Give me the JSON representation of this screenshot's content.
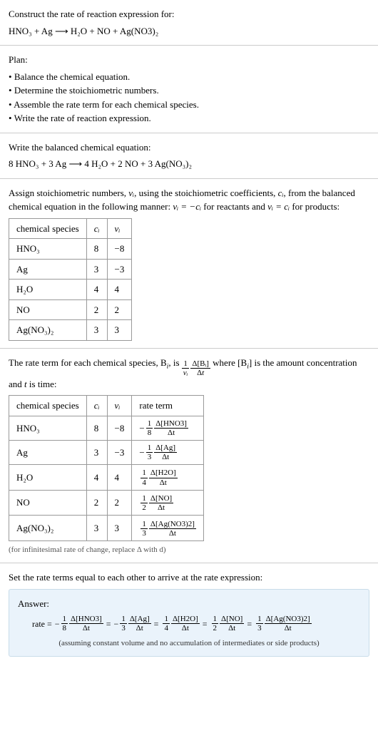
{
  "prompt": {
    "heading": "Construct the rate of reaction expression for:",
    "equation_lhs": "HNO",
    "equation": "HNO₃ + Ag ⟶ H₂O + NO + Ag(NO3)₂"
  },
  "plan": {
    "heading": "Plan:",
    "items": [
      "Balance the chemical equation.",
      "Determine the stoichiometric numbers.",
      "Assemble the rate term for each chemical species.",
      "Write the rate of reaction expression."
    ]
  },
  "balanced": {
    "heading": "Write the balanced chemical equation:",
    "equation": "8 HNO₃ + 3 Ag ⟶ 4 H₂O + 2 NO + 3 Ag(NO₃)₂"
  },
  "stoich": {
    "intro_a": "Assign stoichiometric numbers, ",
    "intro_b": ", using the stoichiometric coefficients, ",
    "intro_c": ", from the balanced chemical equation in the following manner: ",
    "intro_d": " for reactants and ",
    "intro_e": " for products:",
    "nu": "ν",
    "nu_i": "νᵢ",
    "c_i": "cᵢ",
    "eq1": "νᵢ = −cᵢ",
    "eq2": "νᵢ = cᵢ",
    "columns": [
      "chemical species",
      "cᵢ",
      "νᵢ"
    ],
    "rows": [
      {
        "species": "HNO₃",
        "c": "8",
        "nu": "−8"
      },
      {
        "species": "Ag",
        "c": "3",
        "nu": "−3"
      },
      {
        "species": "H₂O",
        "c": "4",
        "nu": "4"
      },
      {
        "species": "NO",
        "c": "2",
        "nu": "2"
      },
      {
        "species": "Ag(NO₃)₂",
        "c": "3",
        "nu": "3"
      }
    ]
  },
  "rateterm": {
    "intro_a": "The rate term for each chemical species, B",
    "intro_b": ", is ",
    "intro_c": " where [B",
    "intro_d": "] is the amount concentration and ",
    "intro_e": " is time:",
    "i_sub": "i",
    "t_var": "t",
    "columns": [
      "chemical species",
      "cᵢ",
      "νᵢ",
      "rate term"
    ],
    "rows": [
      {
        "species": "HNO₃",
        "c": "8",
        "nu": "−8",
        "sign": "−",
        "coef_num": "1",
        "coef_den": "8",
        "d_num": "Δ[HNO3]",
        "d_den": "Δt"
      },
      {
        "species": "Ag",
        "c": "3",
        "nu": "−3",
        "sign": "−",
        "coef_num": "1",
        "coef_den": "3",
        "d_num": "Δ[Ag]",
        "d_den": "Δt"
      },
      {
        "species": "H₂O",
        "c": "4",
        "nu": "4",
        "sign": "",
        "coef_num": "1",
        "coef_den": "4",
        "d_num": "Δ[H2O]",
        "d_den": "Δt"
      },
      {
        "species": "NO",
        "c": "2",
        "nu": "2",
        "sign": "",
        "coef_num": "1",
        "coef_den": "2",
        "d_num": "Δ[NO]",
        "d_den": "Δt"
      },
      {
        "species": "Ag(NO₃)₂",
        "c": "3",
        "nu": "3",
        "sign": "",
        "coef_num": "1",
        "coef_den": "3",
        "d_num": "Δ[Ag(NO3)2]",
        "d_den": "Δt"
      }
    ],
    "note": "(for infinitesimal rate of change, replace Δ with d)"
  },
  "final": {
    "heading": "Set the rate terms equal to each other to arrive at the rate expression:",
    "answer_label": "Answer:",
    "rate_label": "rate =",
    "terms": [
      {
        "sign": "−",
        "coef_num": "1",
        "coef_den": "8",
        "d_num": "Δ[HNO3]",
        "d_den": "Δt"
      },
      {
        "sign": "−",
        "coef_num": "1",
        "coef_den": "3",
        "d_num": "Δ[Ag]",
        "d_den": "Δt"
      },
      {
        "sign": "",
        "coef_num": "1",
        "coef_den": "4",
        "d_num": "Δ[H2O]",
        "d_den": "Δt"
      },
      {
        "sign": "",
        "coef_num": "1",
        "coef_den": "2",
        "d_num": "Δ[NO]",
        "d_den": "Δt"
      },
      {
        "sign": "",
        "coef_num": "1",
        "coef_den": "3",
        "d_num": "Δ[Ag(NO3)2]",
        "d_den": "Δt"
      }
    ],
    "eq": "=",
    "subnote": "(assuming constant volume and no accumulation of intermediates or side products)"
  }
}
